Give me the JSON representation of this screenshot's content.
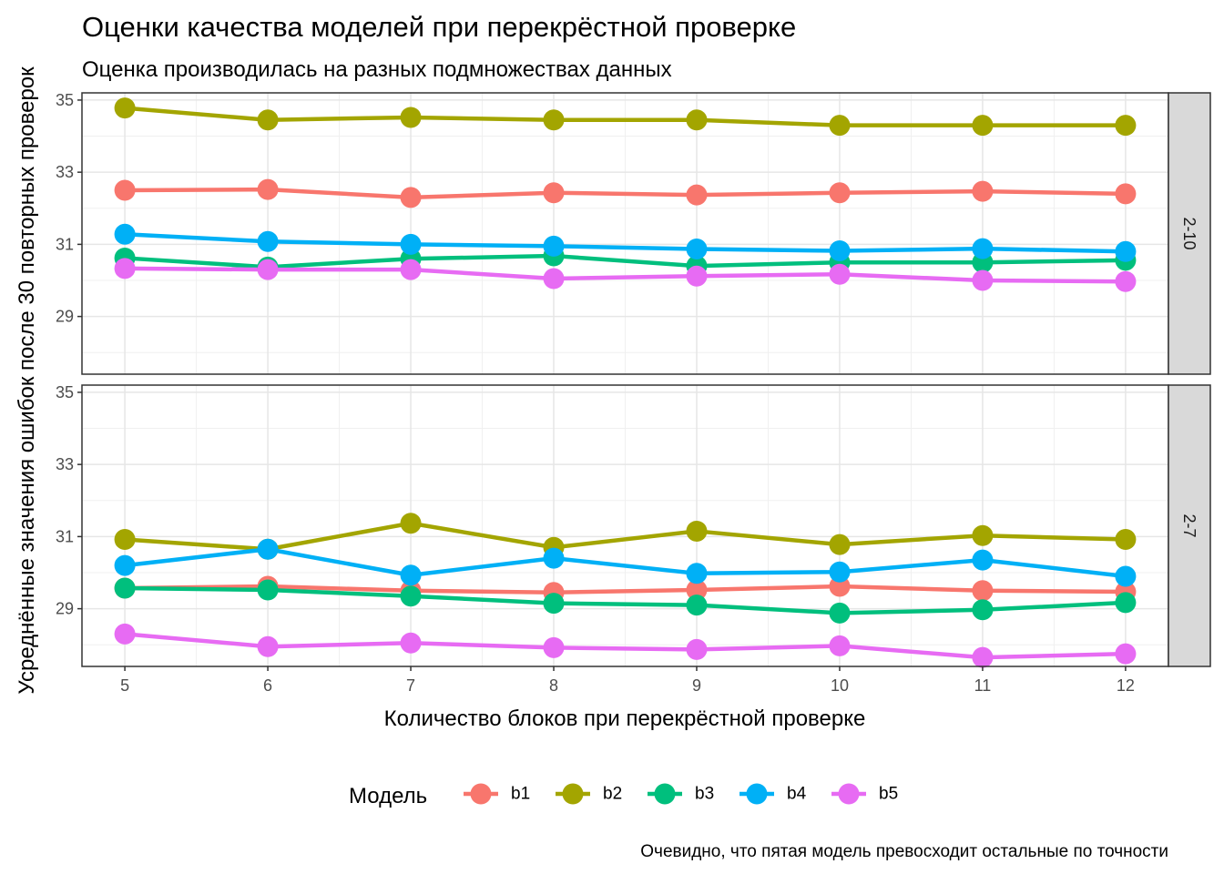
{
  "chart_data": {
    "type": "line",
    "title": "Оценки качества моделей при перекрёстной проверке",
    "subtitle": "Оценка производилась на разных подмножествах данных",
    "xlabel": "Количество блоков при перекрёстной проверке",
    "ylabel": "Усреднённые значения ошибок после 30 повторных проверок",
    "caption": "Очевидно, что пятая модель превосходит остальные по точности",
    "legend_title": "Модель",
    "legend_position": "bottom",
    "x": [
      5,
      6,
      7,
      8,
      9,
      10,
      11,
      12
    ],
    "x_ticks": [
      "5",
      "6",
      "7",
      "8",
      "9",
      "10",
      "11",
      "12"
    ],
    "y_ticks": [
      "29",
      "31",
      "33",
      "35"
    ],
    "ylim": [
      27.4,
      35.2
    ],
    "xlim": [
      4.7,
      12.3
    ],
    "grid": true,
    "colors": {
      "b1": "#F8766D",
      "b2": "#A3A500",
      "b3": "#00BF7D",
      "b4": "#00B0F6",
      "b5": "#E76BF3"
    },
    "panels": [
      {
        "strip": "2-10",
        "series": [
          {
            "name": "b1",
            "values": [
              32.5,
              32.52,
              32.3,
              32.43,
              32.37,
              32.43,
              32.47,
              32.4
            ]
          },
          {
            "name": "b2",
            "values": [
              34.78,
              34.45,
              34.52,
              34.45,
              34.45,
              34.3,
              34.3,
              34.3
            ]
          },
          {
            "name": "b3",
            "values": [
              30.62,
              30.37,
              30.6,
              30.68,
              30.4,
              30.5,
              30.5,
              30.56
            ]
          },
          {
            "name": "b4",
            "values": [
              31.28,
              31.08,
              31.0,
              30.95,
              30.87,
              30.82,
              30.88,
              30.8
            ]
          },
          {
            "name": "b5",
            "values": [
              30.33,
              30.3,
              30.3,
              30.05,
              30.12,
              30.17,
              30.0,
              29.97
            ]
          }
        ]
      },
      {
        "strip": "2-7",
        "series": [
          {
            "name": "b1",
            "values": [
              29.57,
              29.62,
              29.5,
              29.45,
              29.52,
              29.62,
              29.5,
              29.47
            ]
          },
          {
            "name": "b2",
            "values": [
              30.92,
              30.65,
              31.37,
              30.7,
              31.15,
              30.78,
              31.03,
              30.92
            ]
          },
          {
            "name": "b3",
            "values": [
              29.57,
              29.52,
              29.35,
              29.15,
              29.1,
              28.88,
              28.97,
              29.17
            ]
          },
          {
            "name": "b4",
            "values": [
              30.2,
              30.65,
              29.93,
              30.4,
              29.98,
              30.02,
              30.35,
              29.9
            ]
          },
          {
            "name": "b5",
            "values": [
              28.3,
              27.95,
              28.05,
              27.92,
              27.87,
              27.97,
              27.65,
              27.75
            ]
          }
        ]
      }
    ]
  }
}
